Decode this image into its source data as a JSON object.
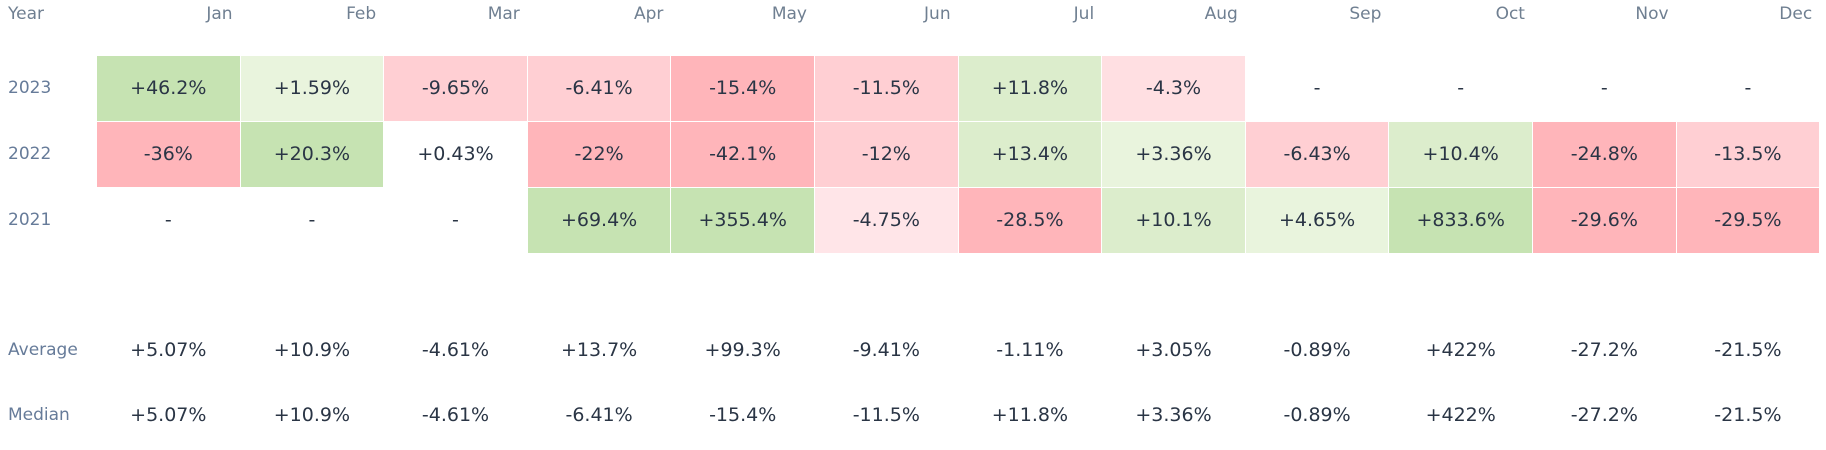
{
  "header": {
    "year_label": "Year",
    "months": [
      "Jan",
      "Feb",
      "Mar",
      "Apr",
      "May",
      "Jun",
      "Jul",
      "Aug",
      "Sep",
      "Oct",
      "Nov",
      "Dec"
    ]
  },
  "rows": [
    {
      "year": "2023",
      "cells": [
        {
          "text": "+46.2%",
          "color": "#c6e3b2"
        },
        {
          "text": "+1.59%",
          "color": "#e9f4dd"
        },
        {
          "text": "-9.65%",
          "color": "#ffcfd3"
        },
        {
          "text": "-6.41%",
          "color": "#ffcfd3"
        },
        {
          "text": "-15.4%",
          "color": "#ffb5ba"
        },
        {
          "text": "-11.5%",
          "color": "#ffcfd3"
        },
        {
          "text": "+11.8%",
          "color": "#dcedcc"
        },
        {
          "text": "-4.3%",
          "color": "#ffdfe2"
        },
        {
          "text": "-",
          "color": "#ffffff"
        },
        {
          "text": "-",
          "color": "#ffffff"
        },
        {
          "text": "-",
          "color": "#ffffff"
        },
        {
          "text": "-",
          "color": "#ffffff"
        }
      ]
    },
    {
      "year": "2022",
      "cells": [
        {
          "text": "-36%",
          "color": "#ffb5ba"
        },
        {
          "text": "+20.3%",
          "color": "#c6e3b2"
        },
        {
          "text": "+0.43%",
          "color": "#ffffff"
        },
        {
          "text": "-22%",
          "color": "#ffb5ba"
        },
        {
          "text": "-42.1%",
          "color": "#ffb5ba"
        },
        {
          "text": "-12%",
          "color": "#ffcfd3"
        },
        {
          "text": "+13.4%",
          "color": "#dcedcc"
        },
        {
          "text": "+3.36%",
          "color": "#e9f4dd"
        },
        {
          "text": "-6.43%",
          "color": "#ffcfd3"
        },
        {
          "text": "+10.4%",
          "color": "#dcedcc"
        },
        {
          "text": "-24.8%",
          "color": "#ffb5ba"
        },
        {
          "text": "-13.5%",
          "color": "#ffcfd3"
        }
      ]
    },
    {
      "year": "2021",
      "cells": [
        {
          "text": "-",
          "color": "#ffffff"
        },
        {
          "text": "-",
          "color": "#ffffff"
        },
        {
          "text": "-",
          "color": "#ffffff"
        },
        {
          "text": "+69.4%",
          "color": "#c6e3b2"
        },
        {
          "text": "+355.4%",
          "color": "#c6e3b2"
        },
        {
          "text": "-4.75%",
          "color": "#ffe5e8"
        },
        {
          "text": "-28.5%",
          "color": "#ffb5ba"
        },
        {
          "text": "+10.1%",
          "color": "#dcedcc"
        },
        {
          "text": "+4.65%",
          "color": "#e9f4dd"
        },
        {
          "text": "+833.6%",
          "color": "#c6e3b2"
        },
        {
          "text": "-29.6%",
          "color": "#ffb5ba"
        },
        {
          "text": "-29.5%",
          "color": "#ffb5ba"
        }
      ]
    }
  ],
  "summary": [
    {
      "label": "Average",
      "values": [
        "+5.07%",
        "+10.9%",
        "-4.61%",
        "+13.7%",
        "+99.3%",
        "-9.41%",
        "-1.11%",
        "+3.05%",
        "-0.89%",
        "+422%",
        "-27.2%",
        "-21.5%"
      ]
    },
    {
      "label": "Median",
      "values": [
        "+5.07%",
        "+10.9%",
        "-4.61%",
        "-6.41%",
        "-15.4%",
        "-11.5%",
        "+11.8%",
        "+3.36%",
        "-0.89%",
        "+422%",
        "-27.2%",
        "-21.5%"
      ]
    }
  ]
}
